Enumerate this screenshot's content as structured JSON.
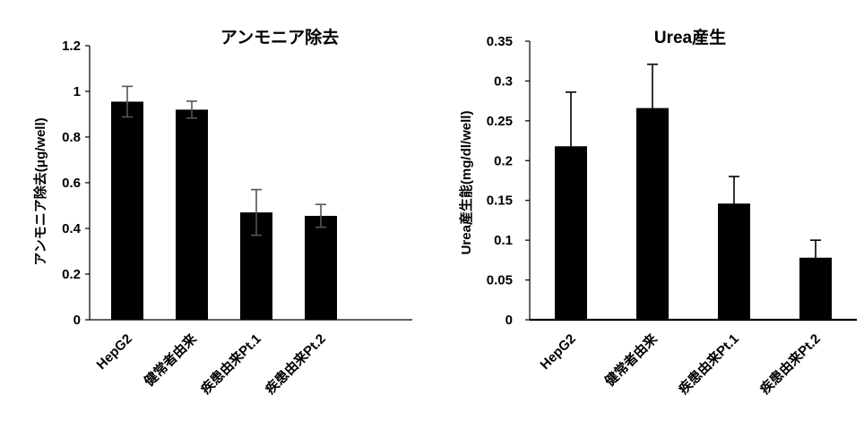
{
  "chart_data": [
    {
      "type": "bar",
      "title": "アンモニア除去",
      "ylabel": "アンモニア除去(μg/well)",
      "xlabel": "",
      "categories": [
        "HepG2",
        "健常者由来",
        "疾患由来Pt.1",
        "疾患由来Pt.2"
      ],
      "values": [
        0.955,
        0.92,
        0.47,
        0.455
      ],
      "error": [
        0.067,
        0.037,
        0.1,
        0.05
      ],
      "error_color": "#555555",
      "ylim": [
        0,
        1.2
      ],
      "yticks": [
        "0",
        "0.2",
        "0.4",
        "0.6",
        "0.8",
        "1",
        "1.2"
      ],
      "bar_color": "#000000",
      "grid": false
    },
    {
      "type": "bar",
      "title": "Urea産生",
      "ylabel": "Urea産生能(mg/dl/well)",
      "xlabel": "",
      "categories": [
        "HepG2",
        "健常者由来",
        "疾患由来Pt.1",
        "疾患由来Pt.2"
      ],
      "values": [
        0.218,
        0.266,
        0.146,
        0.078
      ],
      "error": [
        0.068,
        0.055,
        0.034,
        0.022
      ],
      "error_color": "#000000",
      "ylim": [
        0,
        0.35
      ],
      "yticks": [
        "0",
        "0.05",
        "0.1",
        "0.15",
        "0.2",
        "0.25",
        "0.3",
        "0.35"
      ],
      "bar_color": "#000000",
      "grid": false
    }
  ]
}
